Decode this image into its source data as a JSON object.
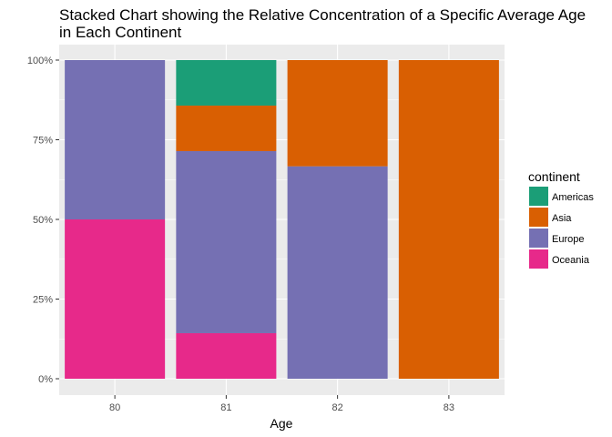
{
  "chart_data": {
    "type": "bar",
    "stacked": true,
    "title_lines": [
      "Stacked Chart showing the Relative Concentration of a Specific Average Age",
      "in Each Continent"
    ],
    "xlabel": "Age",
    "ylabel": "",
    "categories": [
      "80",
      "81",
      "82",
      "83"
    ],
    "y_ticks": [
      "0%",
      "25%",
      "50%",
      "75%",
      "100%"
    ],
    "ylim": [
      0,
      1
    ],
    "grid": true,
    "legend": {
      "title": "continent",
      "position": "right"
    },
    "series": [
      {
        "name": "Oceania",
        "color": "#E7298A",
        "values": [
          0.5,
          0.1429,
          0,
          0
        ]
      },
      {
        "name": "Europe",
        "color": "#7570B3",
        "values": [
          0.5,
          0.5714,
          0.6667,
          0
        ]
      },
      {
        "name": "Asia",
        "color": "#D95F02",
        "values": [
          0,
          0.1429,
          0.3333,
          1.0
        ]
      },
      {
        "name": "Americas",
        "color": "#1B9E77",
        "values": [
          0,
          0.1429,
          0,
          0
        ]
      }
    ],
    "legend_order": [
      "Americas",
      "Asia",
      "Europe",
      "Oceania"
    ]
  }
}
